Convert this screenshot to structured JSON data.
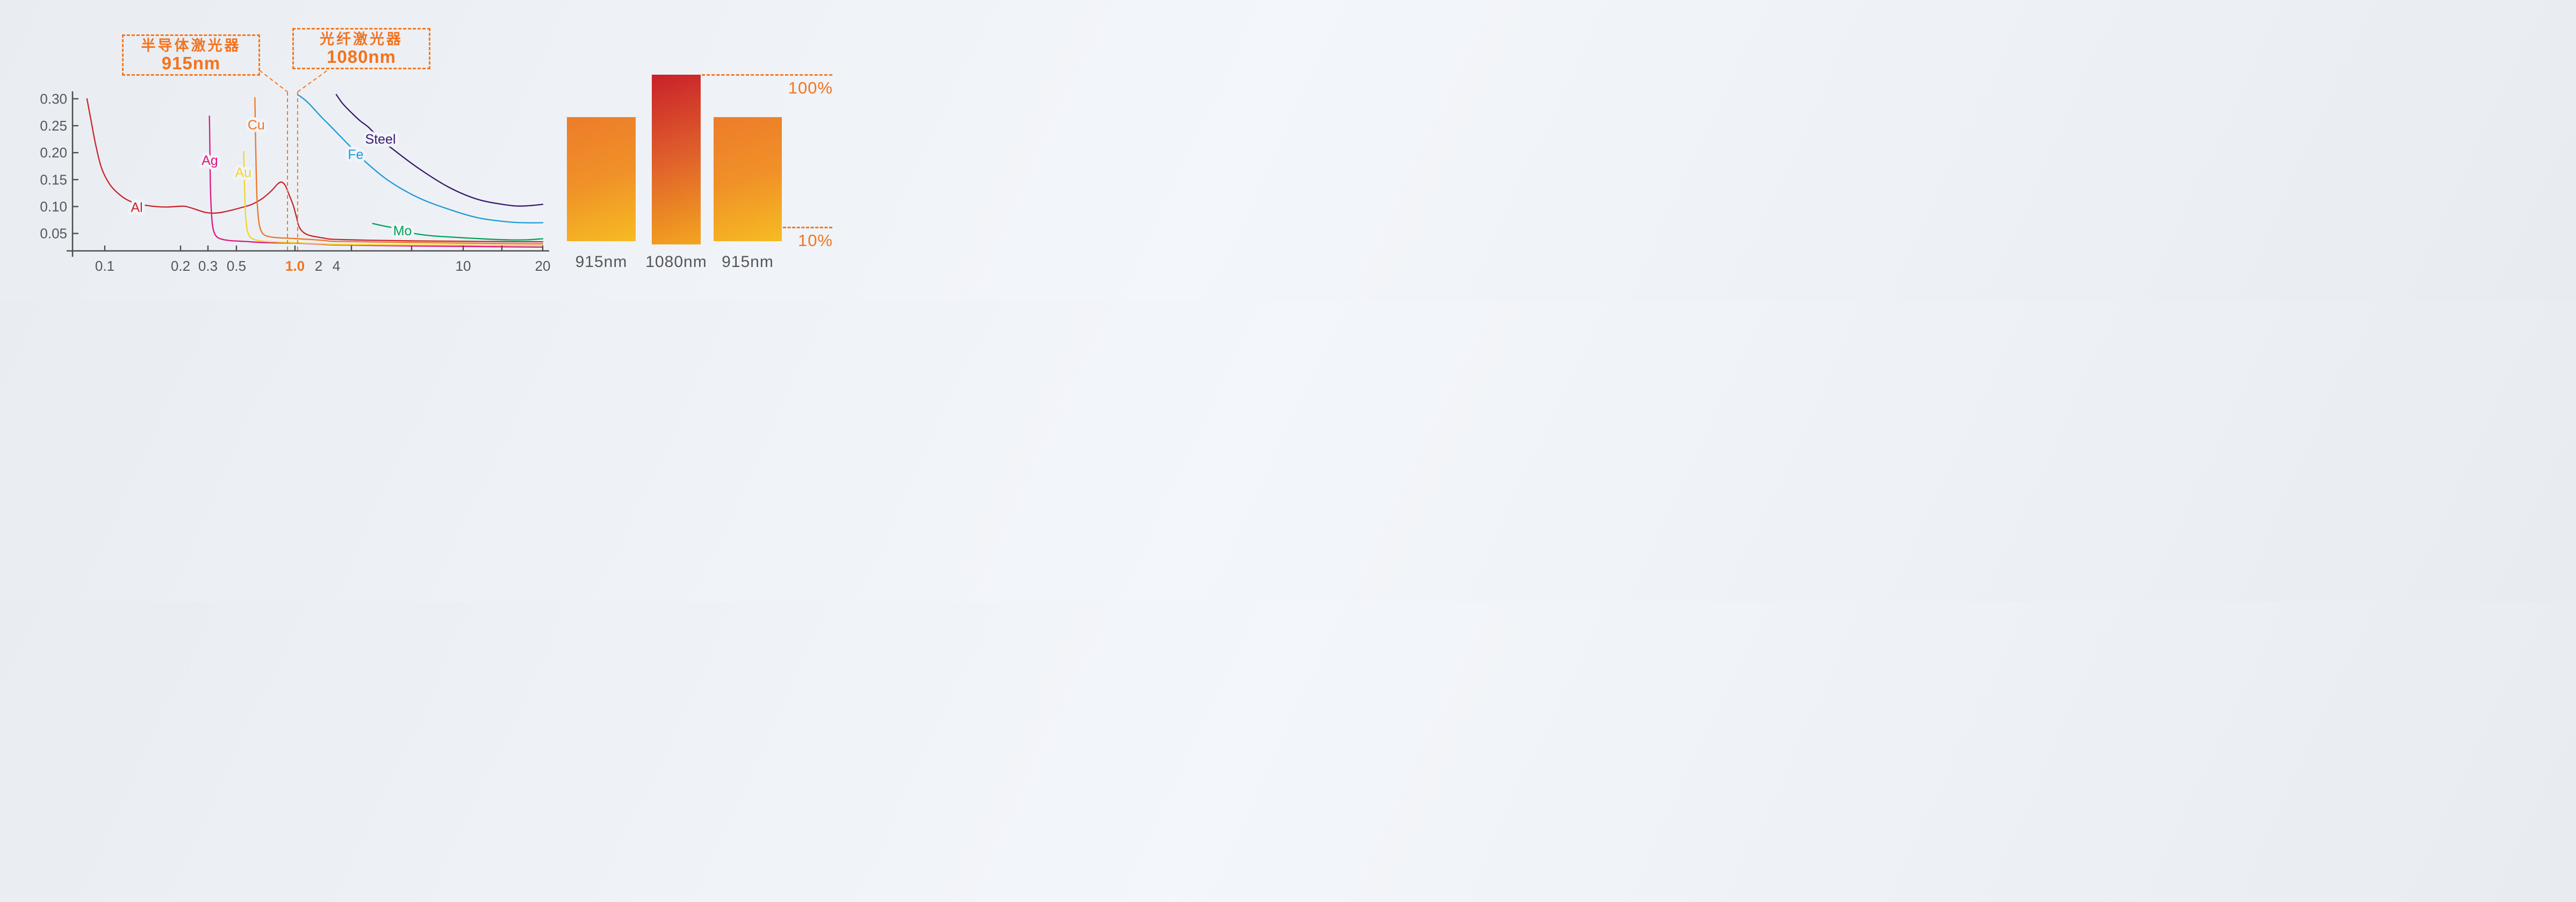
{
  "colors": {
    "accent_orange": "#f4731d",
    "dash_orange": "#f4791f",
    "axis_gray": "#4d4e50",
    "label_gray": "#55565a",
    "halo": "#f1f4f8"
  },
  "callouts": [
    {
      "line1": "半导体激光器",
      "line2": "915nm"
    },
    {
      "line1": "光纤激光器",
      "line2": "1080nm"
    }
  ],
  "chart_data": [
    {
      "type": "line",
      "title": "",
      "xlabel": "",
      "ylabel": "",
      "x_scale": "log-stylized",
      "x_range": [
        0.08,
        20
      ],
      "y_range": [
        0.018,
        0.314
      ],
      "grid": false,
      "x_ticks": [
        {
          "v": 0.1,
          "label": "0.1"
        },
        {
          "v": 0.2,
          "label": "0.2"
        },
        {
          "v": 0.3,
          "label": "0.3"
        },
        {
          "v": 0.5,
          "label": "0.5"
        },
        {
          "v": 1.0,
          "label": "1.0",
          "highlight": true
        },
        {
          "v": 2,
          "label": "2"
        },
        {
          "v": 4,
          "label": "4"
        },
        {
          "v": 10,
          "label": "10"
        },
        {
          "v": 20,
          "label": "20"
        }
      ],
      "y_ticks": [
        {
          "v": 0.05,
          "label": "0.05"
        },
        {
          "v": 0.1,
          "label": "0.10"
        },
        {
          "v": 0.15,
          "label": "0.15"
        },
        {
          "v": 0.2,
          "label": "0.20"
        },
        {
          "v": 0.25,
          "label": "0.25"
        },
        {
          "v": 0.3,
          "label": "0.30"
        }
      ],
      "markers": [
        {
          "x": 0.915,
          "callout": 0
        },
        {
          "x": 1.08,
          "callout": 1
        }
      ],
      "series": [
        {
          "name": "Al",
          "color": "#c9252b",
          "label_at": [
            0.134,
            0.098
          ],
          "points": [
            [
              0.085,
              0.3
            ],
            [
              0.088,
              0.262
            ],
            [
              0.092,
              0.215
            ],
            [
              0.097,
              0.172
            ],
            [
              0.104,
              0.143
            ],
            [
              0.112,
              0.126
            ],
            [
              0.122,
              0.113
            ],
            [
              0.135,
              0.105
            ],
            [
              0.155,
              0.1005
            ],
            [
              0.175,
              0.099
            ],
            [
              0.195,
              0.1002
            ],
            [
              0.215,
              0.1003
            ],
            [
              0.245,
              0.0955
            ],
            [
              0.285,
              0.0895
            ],
            [
              0.325,
              0.0876
            ],
            [
              0.375,
              0.0888
            ],
            [
              0.44,
              0.0922
            ],
            [
              0.52,
              0.0972
            ],
            [
              0.6,
              0.104
            ],
            [
              0.68,
              0.115
            ],
            [
              0.755,
              0.129
            ],
            [
              0.81,
              0.141
            ],
            [
              0.85,
              0.1455
            ],
            [
              0.89,
              0.1395
            ],
            [
              0.93,
              0.123
            ],
            [
              0.98,
              0.102
            ],
            [
              1.05,
              0.079
            ],
            [
              1.13,
              0.062
            ],
            [
              1.27,
              0.0525
            ],
            [
              1.5,
              0.0468
            ],
            [
              1.85,
              0.0438
            ],
            [
              2.5,
              0.0412
            ],
            [
              3.5,
              0.0392
            ],
            [
              5,
              0.0375
            ],
            [
              7,
              0.0362
            ],
            [
              10,
              0.0355
            ],
            [
              14,
              0.0349
            ],
            [
              20,
              0.0346
            ]
          ]
        },
        {
          "name": "Ag",
          "color": "#e01580",
          "label_at": [
            0.31,
            0.185
          ],
          "points": [
            [
              0.308,
              0.268
            ],
            [
              0.3095,
              0.235
            ],
            [
              0.3105,
              0.205
            ],
            [
              0.3115,
              0.175
            ],
            [
              0.313,
              0.145
            ],
            [
              0.3155,
              0.115
            ],
            [
              0.319,
              0.09
            ],
            [
              0.325,
              0.0665
            ],
            [
              0.334,
              0.053
            ],
            [
              0.347,
              0.0453
            ],
            [
              0.366,
              0.041
            ],
            [
              0.4,
              0.0384
            ],
            [
              0.46,
              0.0365
            ],
            [
              0.55,
              0.0352
            ],
            [
              0.7,
              0.033
            ],
            [
              0.95,
              0.0322
            ],
            [
              1.4,
              0.0312
            ],
            [
              2.2,
              0.03
            ],
            [
              3.5,
              0.0288
            ],
            [
              5.5,
              0.0275
            ],
            [
              8.5,
              0.0263
            ],
            [
              13,
              0.0254
            ],
            [
              20,
              0.0246
            ]
          ]
        },
        {
          "name": "Au",
          "color": "#f4d428",
          "label_at": [
            0.542,
            0.163
          ],
          "points": [
            [
              0.545,
              0.202
            ],
            [
              0.547,
              0.176
            ],
            [
              0.549,
              0.15
            ],
            [
              0.5515,
              0.124
            ],
            [
              0.5545,
              0.099
            ],
            [
              0.559,
              0.0775
            ],
            [
              0.566,
              0.0595
            ],
            [
              0.577,
              0.0484
            ],
            [
              0.594,
              0.042
            ],
            [
              0.62,
              0.0386
            ],
            [
              0.66,
              0.0363
            ],
            [
              0.73,
              0.0348
            ],
            [
              0.85,
              0.0337
            ],
            [
              1.1,
              0.0326
            ],
            [
              1.6,
              0.0315
            ],
            [
              2.5,
              0.0305
            ],
            [
              4,
              0.0296
            ],
            [
              6.5,
              0.0288
            ],
            [
              10,
              0.0284
            ],
            [
              14.5,
              0.0279
            ],
            [
              20,
              0.0276
            ]
          ]
        },
        {
          "name": "Cu",
          "color": "#ee7524",
          "label_at": [
            0.632,
            0.251
          ],
          "points": [
            [
              0.622,
              0.302
            ],
            [
              0.624,
              0.27
            ],
            [
              0.626,
              0.238
            ],
            [
              0.6285,
              0.206
            ],
            [
              0.631,
              0.174
            ],
            [
              0.634,
              0.143
            ],
            [
              0.638,
              0.114
            ],
            [
              0.6445,
              0.0885
            ],
            [
              0.6535,
              0.069
            ],
            [
              0.666,
              0.0568
            ],
            [
              0.684,
              0.0495
            ],
            [
              0.712,
              0.0455
            ],
            [
              0.755,
              0.0433
            ],
            [
              0.825,
              0.042
            ],
            [
              0.95,
              0.041
            ],
            [
              1.2,
              0.0398
            ],
            [
              1.7,
              0.0385
            ],
            [
              2.6,
              0.0368
            ],
            [
              4,
              0.0352
            ],
            [
              6,
              0.0337
            ],
            [
              9,
              0.0324
            ],
            [
              13,
              0.0315
            ],
            [
              17,
              0.031
            ],
            [
              20,
              0.0308
            ]
          ]
        },
        {
          "name": "Fe",
          "color": "#1e9bd7",
          "label_at": [
            4.6,
            0.196
          ],
          "points": [
            [
              1.08,
              0.308
            ],
            [
              1.4,
              0.2955
            ],
            [
              1.8,
              0.279
            ],
            [
              2.3,
              0.2645
            ],
            [
              3.0,
              0.252
            ],
            [
              4.0,
              0.238
            ],
            [
              4.37,
              0.2145
            ],
            [
              4.85,
              0.187
            ],
            [
              5.8,
              0.149
            ],
            [
              7.2,
              0.117
            ],
            [
              9.0,
              0.095
            ],
            [
              11.4,
              0.079
            ],
            [
              14.8,
              0.0715
            ],
            [
              17.5,
              0.0698
            ],
            [
              20,
              0.07
            ]
          ]
        },
        {
          "name": "Steel",
          "color": "#3a1a6e",
          "label_at": [
            5.5,
            0.2245
          ],
          "points": [
            [
              3.98,
              0.308
            ],
            [
              4.2,
              0.29
            ],
            [
              4.5,
              0.272
            ],
            [
              4.75,
              0.259
            ],
            [
              5.05,
              0.247
            ],
            [
              5.5,
              0.2245
            ],
            [
              6.0,
              0.207
            ],
            [
              7.24,
              0.171
            ],
            [
              9.0,
              0.136
            ],
            [
              11.4,
              0.113
            ],
            [
              14.8,
              0.1025
            ],
            [
              17,
              0.101
            ],
            [
              20,
              0.104
            ]
          ]
        },
        {
          "name": "Mo",
          "color": "#00a356",
          "label_at": [
            6.45,
            0.0548
          ],
          "points": [
            [
              5.2,
              0.0685
            ],
            [
              5.7,
              0.0632
            ],
            [
              6.05,
              0.0602
            ],
            [
              6.45,
              0.0548
            ],
            [
              7.1,
              0.0495
            ],
            [
              8.0,
              0.0456
            ],
            [
              10,
              0.042
            ],
            [
              12.5,
              0.0394
            ],
            [
              15,
              0.0381
            ],
            [
              17.5,
              0.0382
            ],
            [
              20,
              0.0402
            ]
          ]
        }
      ]
    },
    {
      "type": "bar",
      "title": "",
      "categories": [
        "915nm",
        "1080nm",
        "915nm"
      ],
      "values": [
        73,
        100,
        73
      ],
      "ylim": [
        0,
        100
      ],
      "ref_lines": [
        {
          "label": "100%",
          "percent": 100
        },
        {
          "label": "10%",
          "percent": 10
        }
      ],
      "bar_gradients": [
        [
          "#ed7c2a",
          "#f09128",
          "#f6bc22"
        ],
        [
          "#c9212a",
          "#e0612b",
          "#f3a51f"
        ],
        [
          "#ed7c2a",
          "#f09128",
          "#f6bc22"
        ]
      ]
    }
  ]
}
